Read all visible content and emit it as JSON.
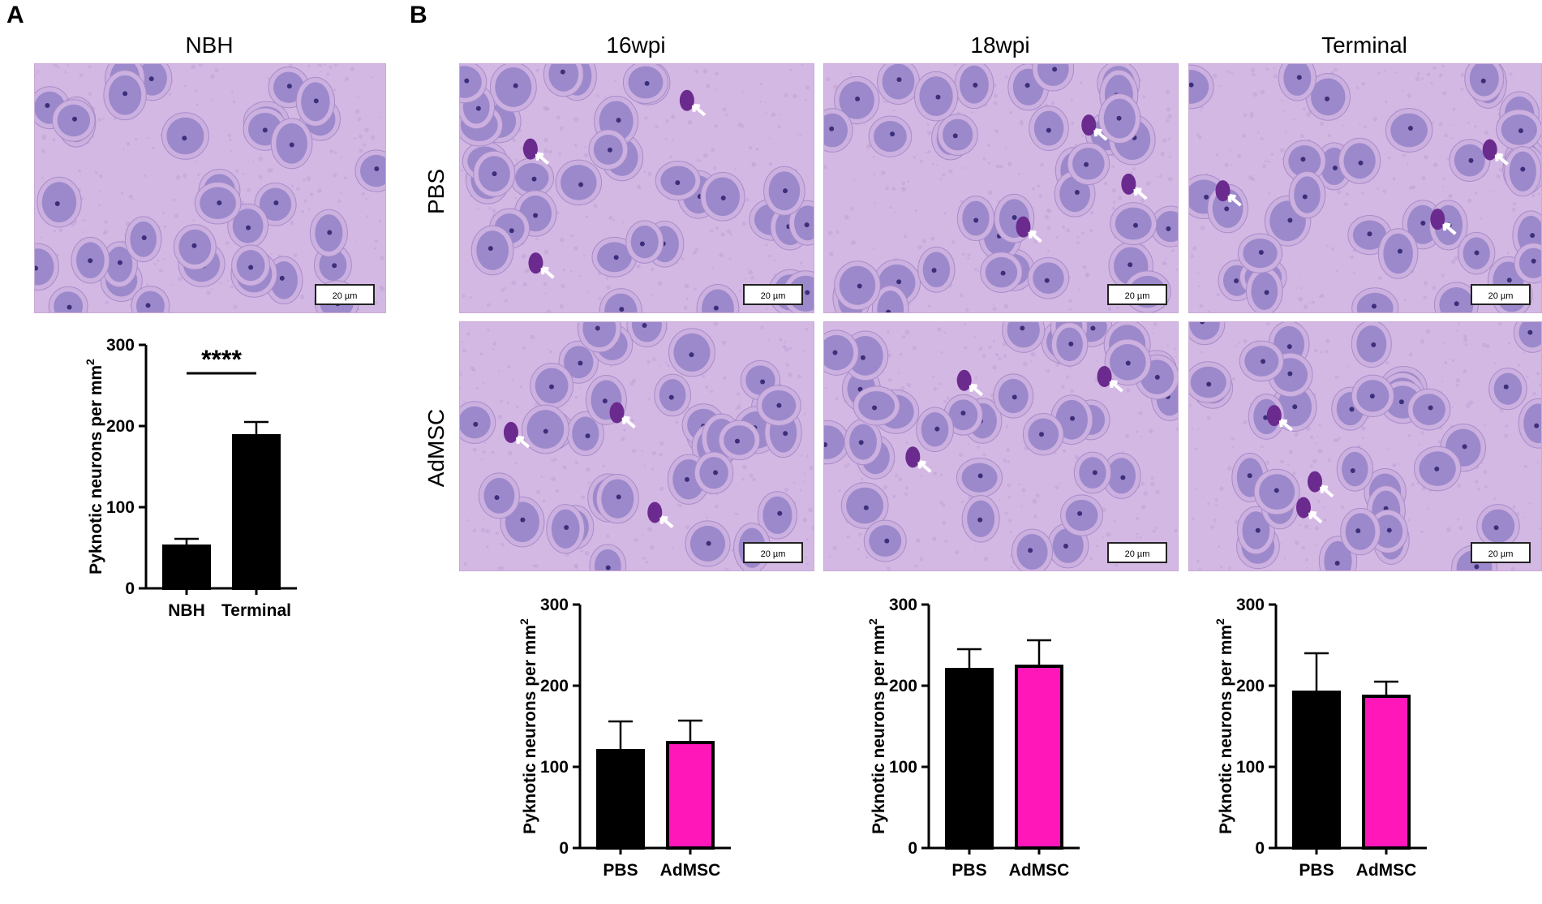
{
  "panels": {
    "a_label": "A",
    "b_label": "B"
  },
  "titles": {
    "nbh": "NBH",
    "wpi16": "16wpi",
    "wpi18": "18wpi",
    "terminal": "Terminal"
  },
  "rows": {
    "pbs": "PBS",
    "admsc": "AdMSC"
  },
  "scale_bar": "20 µm",
  "colors": {
    "black_bar": "#000000",
    "magenta_bar": "#ff17b9",
    "tissue_bg": "#d4b8e4",
    "nucleus": "#8c7cc4",
    "pyknotic": "#6b2a8e"
  },
  "chart_data": [
    {
      "id": "A",
      "type": "bar",
      "categories": [
        "NBH",
        "Terminal"
      ],
      "values": [
        52,
        188
      ],
      "errors": [
        9,
        17
      ],
      "ylabel": "Pyknotic neurons per mm",
      "ylabel_sup": "2",
      "ylim": [
        0,
        300
      ],
      "yticks": [
        0,
        100,
        200,
        300
      ],
      "significance": "****",
      "colors": [
        "#000000",
        "#000000"
      ]
    },
    {
      "id": "B16",
      "type": "bar",
      "categories": [
        "PBS",
        "AdMSC"
      ],
      "values": [
        120,
        130
      ],
      "errors": [
        36,
        27
      ],
      "ylabel": "Pyknotic neurons per mm",
      "ylabel_sup": "2",
      "ylim": [
        0,
        300
      ],
      "yticks": [
        0,
        100,
        200,
        300
      ],
      "colors": [
        "#000000",
        "#ff17b9"
      ]
    },
    {
      "id": "B18",
      "type": "bar",
      "categories": [
        "PBS",
        "AdMSC"
      ],
      "values": [
        220,
        224
      ],
      "errors": [
        25,
        32
      ],
      "ylabel": "Pyknotic neurons per mm",
      "ylabel_sup": "2",
      "ylim": [
        0,
        300
      ],
      "yticks": [
        0,
        100,
        200,
        300
      ],
      "colors": [
        "#000000",
        "#ff17b9"
      ]
    },
    {
      "id": "BT",
      "type": "bar",
      "categories": [
        "PBS",
        "AdMSC"
      ],
      "values": [
        192,
        187
      ],
      "errors": [
        48,
        18
      ],
      "ylabel": "Pyknotic neurons per mm",
      "ylabel_sup": "2",
      "ylim": [
        0,
        300
      ],
      "yticks": [
        0,
        100,
        200,
        300
      ],
      "colors": [
        "#000000",
        "#ff17b9"
      ]
    }
  ]
}
